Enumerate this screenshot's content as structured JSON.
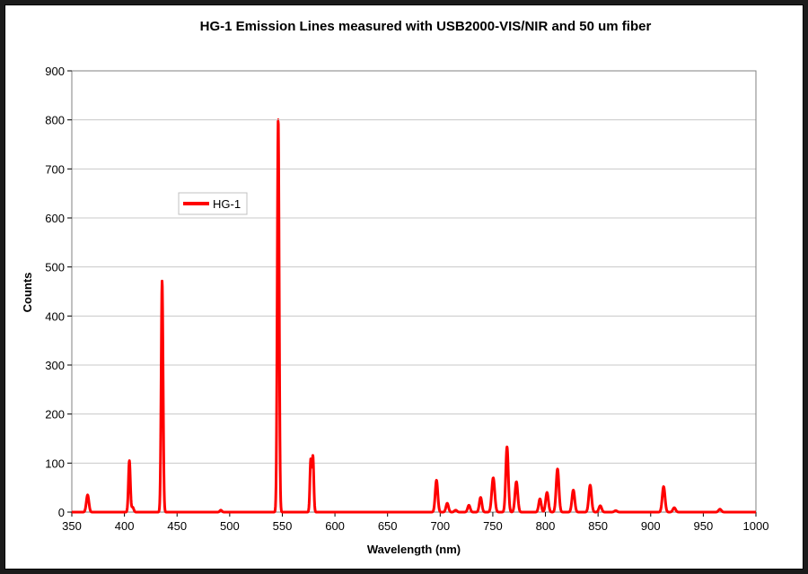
{
  "chart_data": {
    "type": "line",
    "title": "HG-1 Emission Lines measured with USB2000-VIS/NIR and 50 um fiber",
    "xlabel": "Wavelength (nm)",
    "ylabel": "Counts",
    "xlim": [
      350,
      1000
    ],
    "ylim": [
      0,
      900
    ],
    "xticks": [
      350,
      400,
      450,
      500,
      550,
      600,
      650,
      700,
      750,
      800,
      850,
      900,
      950,
      1000
    ],
    "yticks": [
      0,
      100,
      200,
      300,
      400,
      500,
      600,
      700,
      800,
      900
    ],
    "grid": "horizontal",
    "legend_position": "upper-left",
    "series": [
      {
        "name": "HG-1",
        "color": "#ff0000",
        "peaks": [
          {
            "x": 365,
            "y": 35,
            "w": 1.2
          },
          {
            "x": 404.7,
            "y": 105,
            "w": 0.9
          },
          {
            "x": 407.8,
            "y": 10,
            "w": 1.0
          },
          {
            "x": 435.8,
            "y": 472,
            "w": 0.9
          },
          {
            "x": 491.6,
            "y": 4,
            "w": 1.0
          },
          {
            "x": 546.1,
            "y": 802,
            "w": 0.9
          },
          {
            "x": 577,
            "y": 105,
            "w": 0.8
          },
          {
            "x": 579.1,
            "y": 112,
            "w": 0.8
          },
          {
            "x": 696.5,
            "y": 65,
            "w": 1.2
          },
          {
            "x": 706.7,
            "y": 18,
            "w": 1.2
          },
          {
            "x": 714.7,
            "y": 4,
            "w": 1.2
          },
          {
            "x": 727.3,
            "y": 14,
            "w": 1.2
          },
          {
            "x": 738.4,
            "y": 30,
            "w": 1.2
          },
          {
            "x": 750.4,
            "y": 70,
            "w": 1.4
          },
          {
            "x": 763.5,
            "y": 133,
            "w": 1.2
          },
          {
            "x": 772.4,
            "y": 62,
            "w": 1.3
          },
          {
            "x": 794.8,
            "y": 27,
            "w": 1.2
          },
          {
            "x": 801.5,
            "y": 40,
            "w": 1.3
          },
          {
            "x": 811.5,
            "y": 88,
            "w": 1.3
          },
          {
            "x": 826.5,
            "y": 45,
            "w": 1.3
          },
          {
            "x": 842.5,
            "y": 55,
            "w": 1.3
          },
          {
            "x": 852.1,
            "y": 13,
            "w": 1.3
          },
          {
            "x": 866.8,
            "y": 3,
            "w": 1.3
          },
          {
            "x": 912.3,
            "y": 52,
            "w": 1.3
          },
          {
            "x": 922.4,
            "y": 9,
            "w": 1.3
          },
          {
            "x": 965.8,
            "y": 6,
            "w": 1.3
          }
        ]
      }
    ]
  }
}
